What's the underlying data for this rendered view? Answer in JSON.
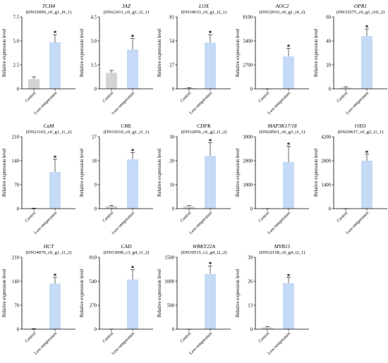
{
  "figure": {
    "categories": [
      "Control",
      "Low-temperature"
    ],
    "ylabel": "Relative expression  level",
    "significance_mark": "*",
    "colors": {
      "control": "#d4d4d4",
      "low_temperature": "#c4daf6",
      "axis": "#000000"
    }
  },
  "chart_data": [
    {
      "type": "bar",
      "title": "TCH4",
      "subtitle": "(DN35099_c0_g1_i9_1)",
      "categories": [
        "Control",
        "Low-temperature"
      ],
      "values": [
        1.0,
        4.85
      ],
      "errors": [
        0.25,
        0.8
      ],
      "ylim": [
        0,
        7.5
      ],
      "yticks": [
        "0",
        "2.5",
        "5.0",
        "7.5"
      ],
      "ylabel": "Relative expression  level",
      "significant": true
    },
    {
      "type": "bar",
      "title": "JAZ",
      "subtitle": "(DN22411_c0_g1_i2_1)",
      "categories": [
        "Control",
        "Low-temperature"
      ],
      "values": [
        1.0,
        2.45
      ],
      "errors": [
        0.15,
        0.7
      ],
      "ylim": [
        0,
        4.5
      ],
      "yticks": [
        "0",
        "1.5",
        "3.0",
        "4.5"
      ],
      "ylabel": "Relative expression  level",
      "significant": true
    },
    {
      "type": "bar",
      "title": "LOX",
      "subtitle": "(DN34633_c0_g1_i2_1)",
      "categories": [
        "Control",
        "Low-temperature"
      ],
      "values": [
        1.0,
        52
      ],
      "errors": [
        0.3,
        9
      ],
      "ylim": [
        0,
        81
      ],
      "yticks": [
        "0",
        "27",
        "54",
        "81"
      ],
      "ylabel": "Relative expression  level",
      "significant": true
    },
    {
      "type": "bar",
      "title": "AOC2",
      "subtitle": "(DN32010_c0_g1_i4_2)",
      "categories": [
        "Control",
        "Low-temperature"
      ],
      "values": [
        1.0,
        3650
      ],
      "errors": [
        0.3,
        900
      ],
      "ylim": [
        0,
        8100
      ],
      "yticks": [
        "0",
        "2700",
        "5400",
        "8100"
      ],
      "ylabel": "Relative expression  level",
      "significant": true
    },
    {
      "type": "bar",
      "title": "OPR1",
      "subtitle": "(DN33575_c0_g1_i10_2)",
      "categories": [
        "Control",
        "Low-temperature"
      ],
      "values": [
        1.0,
        44
      ],
      "errors": [
        0.7,
        6
      ],
      "ylim": [
        0,
        60
      ],
      "yticks": [
        "0",
        "20",
        "40",
        "60"
      ],
      "ylabel": "Relative expression  level",
      "significant": true
    },
    {
      "type": "bar",
      "title": "CaM",
      "subtitle": "(DN21102_c0_g1_i1_2)",
      "categories": [
        "Control",
        "Low-temperature"
      ],
      "values": [
        1.0,
        107
      ],
      "errors": [
        0.5,
        37
      ],
      "ylim": [
        0,
        210
      ],
      "yticks": [
        "0",
        "70",
        "140",
        "210"
      ],
      "ylabel": "Relative expression  level",
      "significant": true
    },
    {
      "type": "bar",
      "title": "CML",
      "subtitle": "(DN19310_c0_g1_i1_1)",
      "categories": [
        "Control",
        "Low-temperature"
      ],
      "values": [
        1.0,
        18.5
      ],
      "errors": [
        0.2,
        2.6
      ],
      "ylim": [
        0,
        27
      ],
      "yticks": [
        "0",
        "9",
        "18",
        "27"
      ],
      "ylabel": "Relative expression  level",
      "significant": true
    },
    {
      "type": "bar",
      "title": "CDPK",
      "subtitle": "(DN32056_c0_g2_i1_2)",
      "categories": [
        "Control",
        "Low-temperature"
      ],
      "values": [
        1.0,
        22
      ],
      "errors": [
        0.3,
        5.5
      ],
      "ylim": [
        0,
        30
      ],
      "yticks": [
        "0",
        "10",
        "20",
        "30"
      ],
      "ylabel": "Relative expression  level",
      "significant": true
    },
    {
      "type": "bar",
      "title": "MAP3K17/18",
      "subtitle": "(DN28501_c0_g3_i1_1)",
      "categories": [
        "Control",
        "Low-temperature"
      ],
      "values": [
        1.0,
        1950
      ],
      "errors": [
        0.3,
        650
      ],
      "ylim": [
        0,
        3000
      ],
      "yticks": [
        "0",
        "1000",
        "2000",
        "3000"
      ],
      "ylabel": "Relative expression  level",
      "significant": true
    },
    {
      "type": "bar",
      "title": "OXI1",
      "subtitle": "(DN29637_c0_g2_i1_1)",
      "categories": [
        "Control",
        "Low-temperature"
      ],
      "values": [
        1.0,
        2800
      ],
      "errors": [
        0.3,
        380
      ],
      "ylim": [
        0,
        4200
      ],
      "yticks": [
        "0",
        "1400",
        "2800",
        "4200"
      ],
      "ylabel": "Relative expression  level",
      "significant": true
    },
    {
      "type": "bar",
      "title": "HCT",
      "subtitle": "(DN34079_c0_g1_i1_2)",
      "categories": [
        "Control",
        "Low-temperature"
      ],
      "values": [
        1.0,
        133
      ],
      "errors": [
        0.5,
        18
      ],
      "ylim": [
        0,
        210
      ],
      "yticks": [
        "0",
        "70",
        "140",
        "210"
      ],
      "ylabel": "Relative expression  level",
      "significant": true
    },
    {
      "type": "bar",
      "title": "CAD",
      "subtitle": "(DN33698_c3_g4_i1_2)",
      "categories": [
        "Control",
        "Low-temperature"
      ],
      "values": [
        1.0,
        560
      ],
      "errors": [
        0.5,
        110
      ],
      "ylim": [
        0,
        810
      ],
      "yticks": [
        "0",
        "270",
        "540",
        "810"
      ],
      "ylabel": "Relative expression  level",
      "significant": true
    },
    {
      "type": "bar",
      "title": "WRKY22A",
      "subtitle": "(DN30515_c2_g4_i2_2)",
      "categories": [
        "Control",
        "Low-temperature"
      ],
      "values": [
        1.0,
        1150
      ],
      "errors": [
        0.5,
        170
      ],
      "ylim": [
        0,
        1500
      ],
      "yticks": [
        "0",
        "500",
        "1000",
        "1500"
      ],
      "ylabel": "Relative expression  level",
      "significant": true
    },
    {
      "type": "bar",
      "title": "MYB15",
      "subtitle": "(DN32158_c0_g4_i2_1)",
      "categories": [
        "Control",
        "Low-temperature"
      ],
      "values": [
        1.0,
        25
      ],
      "errors": [
        0.3,
        3
      ],
      "ylim": [
        0,
        39
      ],
      "yticks": [
        "0",
        "13",
        "26",
        "39"
      ],
      "ylabel": "Relative expression  level",
      "significant": true
    }
  ]
}
